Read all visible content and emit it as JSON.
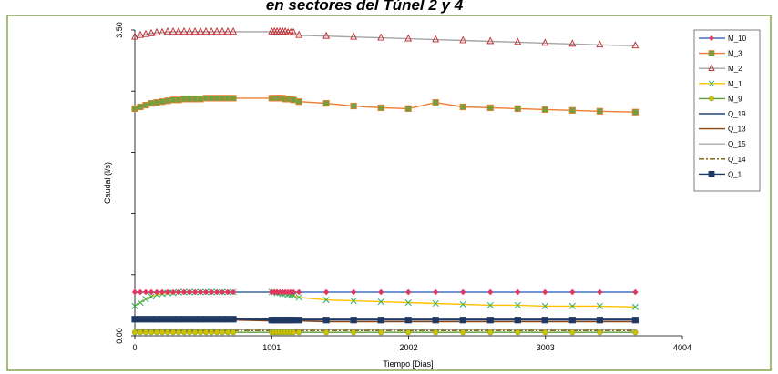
{
  "chart_data": {
    "type": "line",
    "title": "en sectores del Túnel 2 y 4",
    "xlabel": "Tiempo [Dias]",
    "ylabel": "Caudal (l/s)",
    "xlim": [
      0,
      4004
    ],
    "ylim": [
      0,
      3.5
    ],
    "x_ticks": [
      "0",
      "1001",
      "2002",
      "3003",
      "4004"
    ],
    "y_ticks": [
      "0.00",
      "3.50"
    ],
    "grid": false,
    "legend_position": "right",
    "series": [
      {
        "name": "M_10",
        "color": "#4472C4",
        "marker": "diamond",
        "marker_color": "#E0385F",
        "style": "solid",
        "x": [
          0,
          40,
          80,
          120,
          160,
          200,
          240,
          280,
          320,
          360,
          400,
          440,
          480,
          520,
          560,
          600,
          640,
          680,
          720,
          1001,
          1020,
          1040,
          1060,
          1080,
          1100,
          1120,
          1140,
          1160,
          1200,
          1400,
          1600,
          1800,
          2000,
          2200,
          2400,
          2600,
          2800,
          3000,
          3200,
          3400,
          3660
        ],
        "y": [
          0.5,
          0.5,
          0.5,
          0.5,
          0.5,
          0.5,
          0.5,
          0.5,
          0.5,
          0.5,
          0.5,
          0.5,
          0.5,
          0.5,
          0.5,
          0.5,
          0.5,
          0.5,
          0.5,
          0.5,
          0.5,
          0.5,
          0.5,
          0.5,
          0.5,
          0.5,
          0.5,
          0.5,
          0.5,
          0.5,
          0.5,
          0.5,
          0.5,
          0.5,
          0.5,
          0.5,
          0.5,
          0.5,
          0.5,
          0.5,
          0.5
        ]
      },
      {
        "name": "M_3",
        "color": "#ED7D31",
        "marker": "square",
        "marker_color": "#70A040",
        "style": "solid",
        "x": [
          0,
          40,
          80,
          120,
          160,
          200,
          240,
          280,
          320,
          360,
          400,
          440,
          480,
          520,
          560,
          600,
          640,
          680,
          720,
          1001,
          1020,
          1040,
          1060,
          1080,
          1100,
          1120,
          1140,
          1160,
          1200,
          1400,
          1600,
          1800,
          2000,
          2200,
          2400,
          2600,
          2800,
          3000,
          3200,
          3400,
          3660
        ],
        "y": [
          2.6,
          2.62,
          2.64,
          2.66,
          2.67,
          2.68,
          2.69,
          2.7,
          2.7,
          2.71,
          2.71,
          2.71,
          2.71,
          2.72,
          2.72,
          2.72,
          2.72,
          2.72,
          2.72,
          2.72,
          2.72,
          2.72,
          2.72,
          2.72,
          2.71,
          2.71,
          2.71,
          2.7,
          2.68,
          2.66,
          2.63,
          2.61,
          2.6,
          2.67,
          2.62,
          2.61,
          2.6,
          2.59,
          2.58,
          2.57,
          2.56
        ]
      },
      {
        "name": "M_2",
        "color": "#A5A5A5",
        "marker": "triangle",
        "marker_color": "#C0262E",
        "style": "solid",
        "x": [
          0,
          40,
          80,
          120,
          160,
          200,
          240,
          280,
          320,
          360,
          400,
          440,
          480,
          520,
          560,
          600,
          640,
          680,
          720,
          1001,
          1020,
          1040,
          1060,
          1080,
          1100,
          1120,
          1140,
          1160,
          1200,
          1400,
          1600,
          1800,
          2000,
          2200,
          2400,
          2600,
          2800,
          3000,
          3200,
          3400,
          3660
        ],
        "y": [
          3.42,
          3.44,
          3.45,
          3.46,
          3.47,
          3.47,
          3.48,
          3.48,
          3.48,
          3.48,
          3.48,
          3.48,
          3.48,
          3.48,
          3.48,
          3.48,
          3.48,
          3.48,
          3.48,
          3.48,
          3.48,
          3.48,
          3.48,
          3.48,
          3.48,
          3.47,
          3.47,
          3.47,
          3.44,
          3.43,
          3.42,
          3.41,
          3.4,
          3.39,
          3.38,
          3.37,
          3.36,
          3.35,
          3.34,
          3.33,
          3.32
        ]
      },
      {
        "name": "M_1",
        "color": "#FFC000",
        "marker": "x",
        "marker_color": "#2BAE66",
        "style": "solid",
        "x": [
          0,
          40,
          80,
          120,
          160,
          200,
          240,
          280,
          320,
          360,
          400,
          440,
          480,
          520,
          560,
          600,
          640,
          680,
          720,
          1001,
          1020,
          1040,
          1060,
          1080,
          1100,
          1120,
          1140,
          1160,
          1200,
          1400,
          1600,
          1800,
          2000,
          2200,
          2400,
          2600,
          2800,
          3000,
          3200,
          3400,
          3660
        ],
        "y": [
          0.34,
          0.38,
          0.42,
          0.45,
          0.47,
          0.48,
          0.49,
          0.49,
          0.5,
          0.5,
          0.5,
          0.5,
          0.5,
          0.5,
          0.5,
          0.5,
          0.5,
          0.5,
          0.5,
          0.5,
          0.5,
          0.49,
          0.49,
          0.48,
          0.48,
          0.47,
          0.46,
          0.46,
          0.44,
          0.41,
          0.4,
          0.39,
          0.38,
          0.37,
          0.36,
          0.35,
          0.35,
          0.34,
          0.34,
          0.34,
          0.33
        ]
      },
      {
        "name": "M_9",
        "color": "#5B9B3A",
        "marker": "circle",
        "marker_color": "#D4C000",
        "style": "solid",
        "x": [
          0,
          40,
          80,
          120,
          160,
          200,
          240,
          280,
          320,
          360,
          400,
          440,
          480,
          520,
          560,
          600,
          640,
          680,
          720,
          1001,
          1020,
          1040,
          1060,
          1080,
          1100,
          1120,
          1140,
          1160,
          1200,
          1400,
          1600,
          1800,
          2000,
          2200,
          2400,
          2600,
          2800,
          3000,
          3200,
          3400,
          3660
        ],
        "y": [
          0.04,
          0.04,
          0.04,
          0.04,
          0.04,
          0.04,
          0.04,
          0.04,
          0.04,
          0.04,
          0.04,
          0.04,
          0.04,
          0.04,
          0.04,
          0.04,
          0.04,
          0.04,
          0.04,
          0.04,
          0.04,
          0.04,
          0.04,
          0.04,
          0.04,
          0.04,
          0.04,
          0.04,
          0.04,
          0.04,
          0.04,
          0.04,
          0.04,
          0.04,
          0.04,
          0.04,
          0.04,
          0.04,
          0.04,
          0.04,
          0.04
        ]
      },
      {
        "name": "Q_19",
        "color": "#264478",
        "marker": "none",
        "marker_color": "#264478",
        "style": "solid",
        "x": [
          0,
          720,
          1001,
          1200,
          1400,
          2000,
          3000,
          3660
        ],
        "y": [
          0.2,
          0.2,
          0.19,
          0.19,
          0.19,
          0.19,
          0.19,
          0.19
        ]
      },
      {
        "name": "Q_13",
        "color": "#8B4513",
        "marker": "none",
        "marker_color": "#8B4513",
        "style": "solid",
        "x": [
          0,
          720,
          1001,
          1200,
          1400,
          2000,
          3000,
          3660
        ],
        "y": [
          0.18,
          0.18,
          0.17,
          0.17,
          0.16,
          0.16,
          0.16,
          0.16
        ]
      },
      {
        "name": "Q_15",
        "color": "#A9A9A9",
        "marker": "none",
        "marker_color": "#A9A9A9",
        "style": "solid",
        "x": [
          0,
          720,
          1001,
          1200,
          1400,
          2000,
          3000,
          3660
        ],
        "y": [
          0.07,
          0.07,
          0.07,
          0.07,
          0.07,
          0.07,
          0.07,
          0.07
        ]
      },
      {
        "name": "Q_14",
        "color": "#7A5A00",
        "marker": "none",
        "marker_color": "#7A5A00",
        "style": "dashdot",
        "x": [
          0,
          720,
          1001,
          1200,
          1400,
          2000,
          3000,
          3660
        ],
        "y": [
          0.06,
          0.06,
          0.06,
          0.06,
          0.06,
          0.06,
          0.06,
          0.06
        ]
      },
      {
        "name": "Q_1",
        "color": "#203864",
        "marker": "square",
        "marker_color": "#203864",
        "style": "solid",
        "x": [
          0,
          40,
          80,
          120,
          160,
          200,
          240,
          280,
          320,
          360,
          400,
          440,
          480,
          520,
          560,
          600,
          640,
          680,
          720,
          1001,
          1020,
          1040,
          1060,
          1080,
          1100,
          1120,
          1140,
          1160,
          1200,
          1400,
          1600,
          1800,
          2000,
          2200,
          2400,
          2600,
          2800,
          3000,
          3200,
          3400,
          3660
        ],
        "y": [
          0.19,
          0.19,
          0.19,
          0.19,
          0.19,
          0.19,
          0.19,
          0.19,
          0.19,
          0.19,
          0.19,
          0.19,
          0.19,
          0.19,
          0.19,
          0.19,
          0.19,
          0.19,
          0.19,
          0.18,
          0.18,
          0.18,
          0.18,
          0.18,
          0.18,
          0.18,
          0.18,
          0.18,
          0.18,
          0.18,
          0.18,
          0.18,
          0.18,
          0.18,
          0.18,
          0.18,
          0.18,
          0.18,
          0.18,
          0.18,
          0.18
        ]
      }
    ]
  }
}
